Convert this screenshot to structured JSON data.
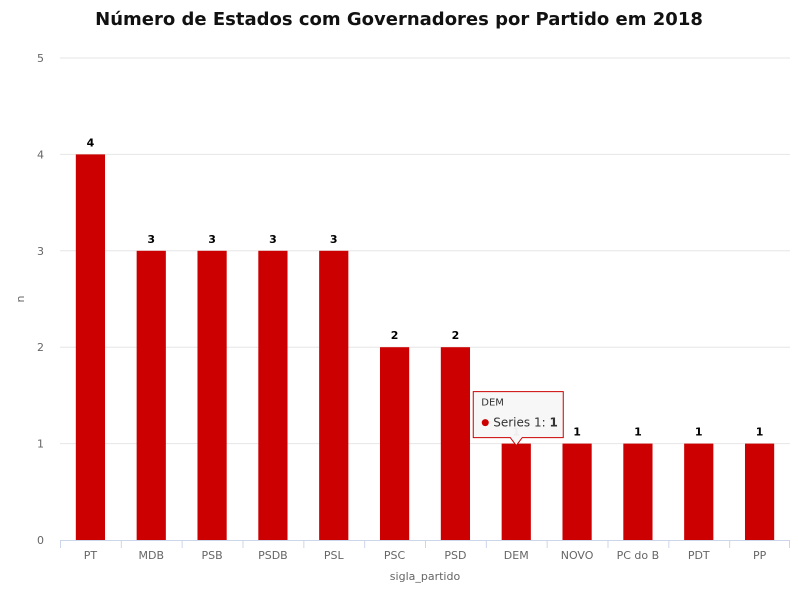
{
  "chart_data": {
    "type": "bar",
    "title": "Número de Estados com Governadores por Partido em 2018",
    "xlabel": "sigla_partido",
    "ylabel": "n",
    "categories": [
      "PT",
      "MDB",
      "PSB",
      "PSDB",
      "PSL",
      "PSC",
      "PSD",
      "DEM",
      "NOVO",
      "PC do B",
      "PDT",
      "PP"
    ],
    "series": [
      {
        "name": "Series 1",
        "values": [
          4,
          3,
          3,
          3,
          3,
          2,
          2,
          1,
          1,
          1,
          1,
          1
        ]
      }
    ],
    "ylim": [
      0,
      5
    ],
    "yticks": [
      0,
      1,
      2,
      3,
      4,
      5
    ],
    "grid": true,
    "bar_color": "#cc0000",
    "data_labels": true,
    "tooltip": {
      "category": "DEM",
      "series": "Series 1",
      "value": "1",
      "separator": ": "
    }
  }
}
